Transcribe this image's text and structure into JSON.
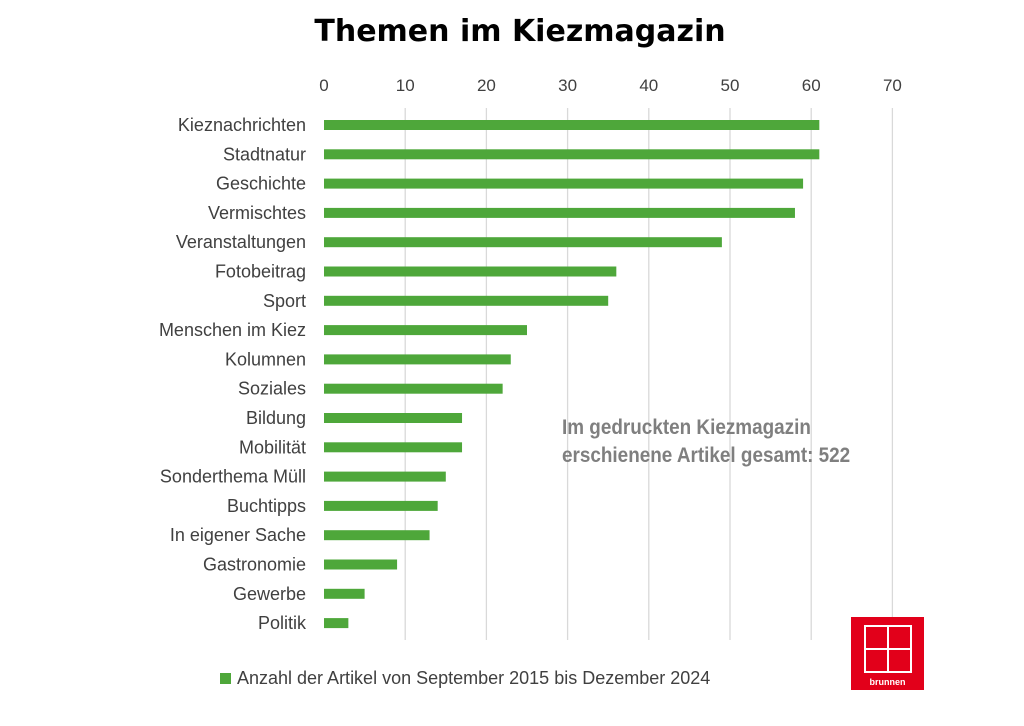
{
  "chart_data": {
    "type": "bar",
    "orientation": "horizontal",
    "title": "Themen im Kiezmagazin",
    "categories": [
      "Kieznachrichten",
      "Stadtnatur",
      "Geschichte",
      "Vermischtes",
      "Veranstaltungen",
      "Fotobeitrag",
      "Sport",
      "Menschen im Kiez",
      "Kolumnen",
      "Soziales",
      "Bildung",
      "Mobilität",
      "Sonderthema Müll",
      "Buchtipps",
      "In eigener Sache",
      "Gastronomie",
      "Gewerbe",
      "Politik"
    ],
    "series": [
      {
        "name": "Anzahl der Artikel von September 2015 bis Dezember 2024",
        "values": [
          61,
          61,
          59,
          58,
          49,
          36,
          35,
          25,
          23,
          22,
          17,
          17,
          15,
          14,
          13,
          9,
          5,
          3
        ]
      }
    ],
    "xlim": [
      0,
      70
    ],
    "xticks": [
      "0",
      "10",
      "20",
      "30",
      "40",
      "50",
      "60",
      "70"
    ],
    "x_axis_position": "top",
    "grid": "vertical",
    "legend_position": "bottom",
    "annotation": [
      "Im gedruckten Kiezmagazin",
      "erschienene Artikel gesamt: 522"
    ],
    "bar_color": "#4ea73a"
  },
  "logo": {
    "text": "brunnen",
    "color": "#e2001a"
  }
}
